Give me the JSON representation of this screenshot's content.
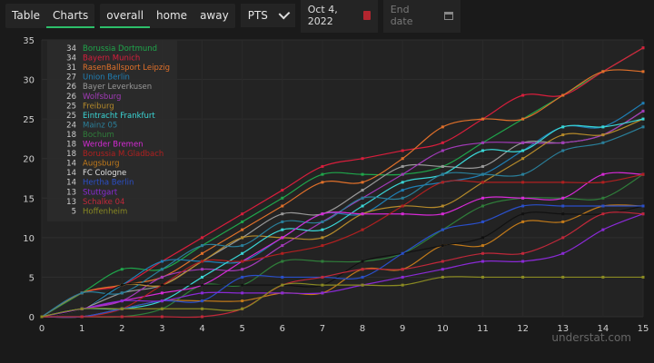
{
  "toolbar": {
    "tabs": [
      {
        "label": "Table",
        "active": false
      },
      {
        "label": "Charts",
        "active": true
      }
    ],
    "venue": [
      {
        "label": "overall",
        "active": true
      },
      {
        "label": "home",
        "active": false
      },
      {
        "label": "away",
        "active": false
      }
    ],
    "metric": "PTS",
    "start_date": "Oct 4, 2022",
    "end_date_placeholder": "End date"
  },
  "watermark": "understat.com",
  "chart_data": {
    "type": "line",
    "xlabel": "",
    "ylabel": "",
    "x": [
      0,
      1,
      2,
      3,
      4,
      5,
      6,
      7,
      8,
      9,
      10,
      11,
      12,
      13,
      14,
      15
    ],
    "xlim": [
      0,
      15
    ],
    "ylim": [
      0,
      35
    ],
    "yticks": [
      0,
      5,
      10,
      15,
      20,
      25,
      30,
      35
    ],
    "grid": true,
    "legend_position": "top-left",
    "series": [
      {
        "name": "Borussia Dortmund",
        "points": 34,
        "color": "#1fa64b",
        "values": [
          0,
          3,
          6,
          6,
          9,
          12,
          15,
          18,
          18,
          18,
          19,
          22,
          25,
          28,
          31,
          34
        ]
      },
      {
        "name": "Bayern Munich",
        "points": 34,
        "color": "#d81e3c",
        "values": [
          0,
          3,
          4,
          7,
          10,
          13,
          16,
          19,
          20,
          21,
          22,
          25,
          28,
          28,
          31,
          34
        ]
      },
      {
        "name": "RasenBallsport Leipzig",
        "points": 31,
        "color": "#e0702a",
        "values": [
          0,
          3,
          4,
          5,
          8,
          11,
          14,
          17,
          17,
          20,
          24,
          25,
          25,
          28,
          31,
          31
        ]
      },
      {
        "name": "Union Berlin",
        "points": 27,
        "color": "#1f7fb5",
        "values": [
          0,
          1,
          4,
          7,
          7,
          7,
          10,
          13,
          13,
          16,
          17,
          18,
          21,
          24,
          24,
          27
        ]
      },
      {
        "name": "Bayer Leverkusen",
        "points": 26,
        "color": "#999999",
        "values": [
          0,
          1,
          3,
          4,
          7,
          10,
          13,
          13,
          16,
          19,
          19,
          19,
          22,
          22,
          23,
          26
        ]
      },
      {
        "name": "Wolfsburg",
        "points": 26,
        "color": "#a23ab8",
        "values": [
          0,
          1,
          2,
          5,
          6,
          6,
          9,
          12,
          15,
          18,
          21,
          22,
          22,
          22,
          23,
          26
        ]
      },
      {
        "name": "Freiburg",
        "points": 25,
        "color": "#b58a2a",
        "values": [
          0,
          1,
          4,
          4,
          7,
          10,
          10,
          10,
          13,
          14,
          14,
          17,
          20,
          23,
          23,
          25
        ]
      },
      {
        "name": "Eintracht Frankfurt",
        "points": 25,
        "color": "#3ad6d6",
        "values": [
          0,
          1,
          1,
          2,
          5,
          8,
          11,
          11,
          14,
          17,
          18,
          21,
          21,
          24,
          24,
          25
        ]
      },
      {
        "name": "Mainz 05",
        "points": 24,
        "color": "#2a7f9a",
        "values": [
          0,
          3,
          3,
          6,
          9,
          9,
          12,
          12,
          15,
          15,
          18,
          18,
          18,
          21,
          22,
          24
        ]
      },
      {
        "name": "Bochum",
        "points": 18,
        "color": "#2f7d3a",
        "values": [
          0,
          0,
          0,
          1,
          4,
          4,
          7,
          7,
          7,
          8,
          11,
          14,
          15,
          15,
          15,
          18
        ]
      },
      {
        "name": "Werder Bremen",
        "points": 18,
        "color": "#d62ad6",
        "values": [
          0,
          1,
          2,
          3,
          4,
          7,
          10,
          13,
          13,
          13,
          13,
          15,
          15,
          15,
          18,
          18
        ]
      },
      {
        "name": "Borussia M.Gladbach",
        "points": 18,
        "color": "#b02020",
        "values": [
          0,
          0,
          1,
          4,
          7,
          7,
          8,
          9,
          11,
          14,
          17,
          17,
          17,
          17,
          17,
          18
        ]
      },
      {
        "name": "Augsburg",
        "points": 14,
        "color": "#c27a1a",
        "values": [
          0,
          0,
          1,
          2,
          2,
          2,
          3,
          3,
          6,
          6,
          9,
          9,
          12,
          12,
          14,
          14
        ]
      },
      {
        "name": "FC Cologne",
        "points": 14,
        "color": "#111111",
        "values": [
          0,
          1,
          4,
          4,
          4,
          4,
          4,
          4,
          7,
          8,
          9,
          10,
          13,
          13,
          13,
          14
        ]
      },
      {
        "name": "Hertha Berlin",
        "points": 14,
        "color": "#2a4fc9",
        "values": [
          0,
          0,
          1,
          2,
          2,
          5,
          5,
          5,
          5,
          8,
          11,
          12,
          14,
          14,
          14,
          14
        ]
      },
      {
        "name": "Stuttgart",
        "points": 13,
        "color": "#8a2ad6",
        "values": [
          0,
          1,
          2,
          2,
          3,
          3,
          3,
          3,
          4,
          5,
          6,
          7,
          7,
          8,
          11,
          13
        ]
      },
      {
        "name": "Schalke 04",
        "points": 13,
        "color": "#c0283a",
        "values": [
          0,
          0,
          0,
          0,
          0,
          1,
          4,
          5,
          6,
          6,
          7,
          8,
          8,
          10,
          13,
          13
        ]
      },
      {
        "name": "Hoffenheim",
        "points": 5,
        "color": "#8a8a22",
        "values": [
          0,
          1,
          1,
          1,
          1,
          1,
          4,
          4,
          4,
          4,
          5,
          5,
          5,
          5,
          5,
          5
        ]
      }
    ]
  }
}
